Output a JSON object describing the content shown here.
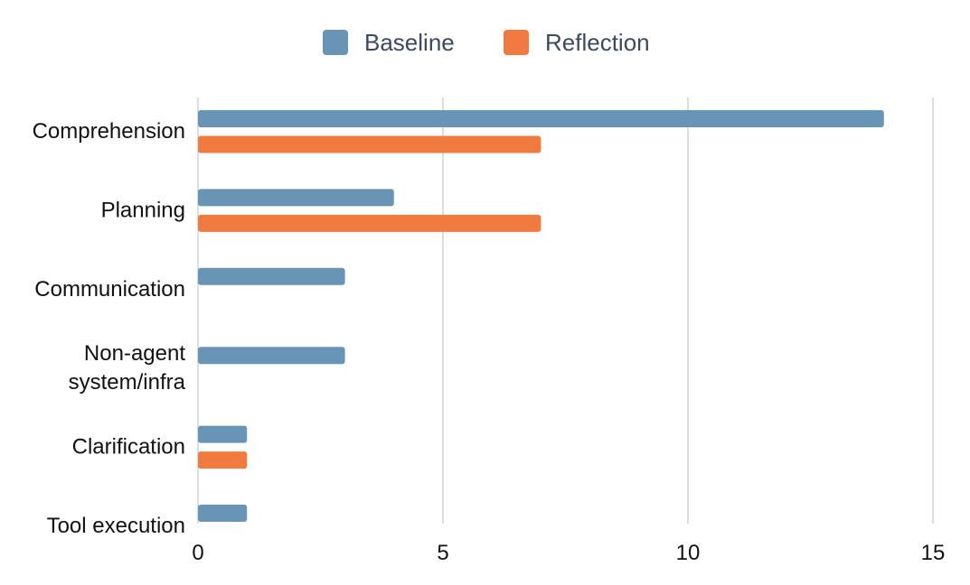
{
  "chart_data": {
    "type": "bar",
    "orientation": "horizontal",
    "title": "",
    "xlabel": "",
    "ylabel": "",
    "categories": [
      [
        "Comprehension"
      ],
      [
        "Planning"
      ],
      [
        "Communication"
      ],
      [
        "Non-agent",
        "system/infra"
      ],
      [
        "Clarification"
      ],
      [
        "Tool execution"
      ]
    ],
    "series": [
      {
        "name": "Baseline",
        "color": "#6894b5",
        "values": [
          14,
          4,
          3,
          3,
          1,
          1
        ]
      },
      {
        "name": "Reflection",
        "color": "#f07a40",
        "values": [
          7,
          7,
          0,
          0,
          1,
          0
        ]
      }
    ],
    "xlim": [
      0,
      15
    ],
    "xticks": [
      0,
      5,
      10,
      15
    ],
    "grid": "vertical",
    "legend_position": "top-center",
    "gridline_color": "#cfd2d9",
    "label_color": "#111111",
    "legend_text_color": "#3d4a5c"
  }
}
